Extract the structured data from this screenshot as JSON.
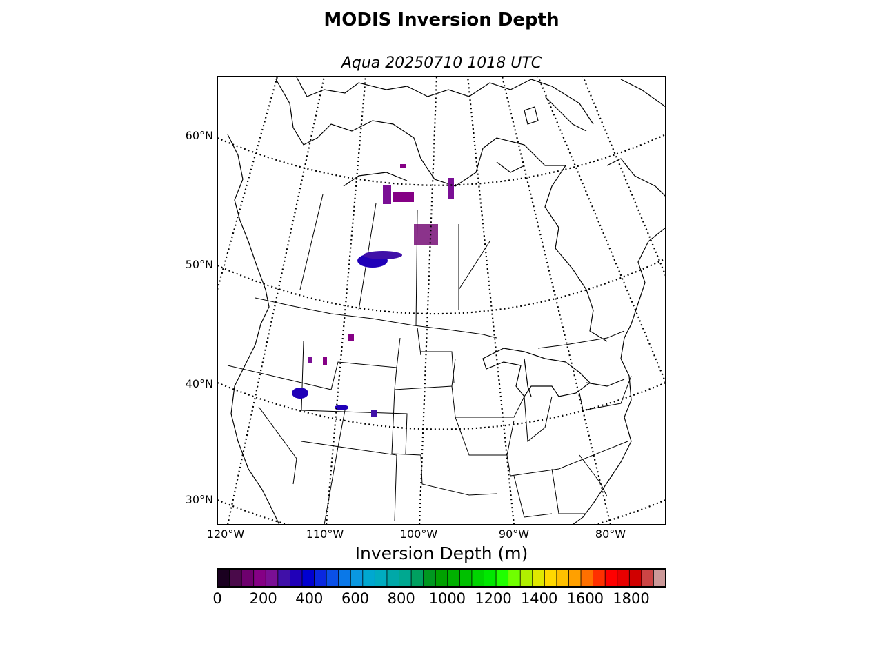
{
  "title": "MODIS Inversion Depth",
  "subtitle": "Aqua 20250710 1018 UTC",
  "map": {
    "lat_labels": [
      "60°N",
      "50°N",
      "40°N",
      "30°N"
    ],
    "lon_labels": [
      "120°W",
      "110°W",
      "100°W",
      "90°W",
      "80°W"
    ],
    "lat_lines_deg": [
      30,
      40,
      50,
      60
    ],
    "lon_lines_deg": [
      -120,
      -110,
      -100,
      -90,
      -80
    ],
    "frame_color": "#000000",
    "graticule_style": "dotted"
  },
  "colorbar": {
    "label": "Inversion Depth (m)",
    "min": 0,
    "max": 1950,
    "ticks": [
      "0",
      "200",
      "400",
      "600",
      "800",
      "1000",
      "1200",
      "1400",
      "1600",
      "1800"
    ],
    "tick_values": [
      0,
      200,
      400,
      600,
      800,
      1000,
      1200,
      1400,
      1600,
      1800
    ],
    "colors": [
      "#1a0020",
      "#4a0a4a",
      "#6e006e",
      "#850085",
      "#7a0f95",
      "#4010a8",
      "#2000b8",
      "#0000d0",
      "#0a28e0",
      "#0a50e8",
      "#0a78e8",
      "#0a98e0",
      "#00a8d0",
      "#00acc0",
      "#00a8a8",
      "#00a890",
      "#00a060",
      "#009820",
      "#00a000",
      "#00b000",
      "#00c000",
      "#00d400",
      "#00e800",
      "#20ff00",
      "#70ff00",
      "#b0f000",
      "#e0e800",
      "#ffd800",
      "#ffc000",
      "#ffa000",
      "#ff7000",
      "#ff3000",
      "#ff0000",
      "#e80000",
      "#d00000",
      "#cc4444",
      "#cc9999"
    ]
  },
  "chart_data": {
    "type": "heatmap",
    "title": "MODIS Inversion Depth",
    "subtitle": "Aqua 20250710 1018 UTC",
    "colorbar_label": "Inversion Depth (m)",
    "colorbar_range": [
      0,
      1950
    ],
    "regions": [
      {
        "name": "",
        "lat": 55.0,
        "lon": -104.0,
        "value": 180
      },
      {
        "name": "",
        "lat": 51.0,
        "lon": -105.5,
        "value": 320
      },
      {
        "name": "",
        "lat": 53.5,
        "lon": -99.5,
        "value": 220
      },
      {
        "name": "",
        "lat": 39.0,
        "lon": -114.5,
        "value": 330
      },
      {
        "name": "",
        "lat": 37.5,
        "lon": -108.0,
        "value": 300
      }
    ]
  }
}
